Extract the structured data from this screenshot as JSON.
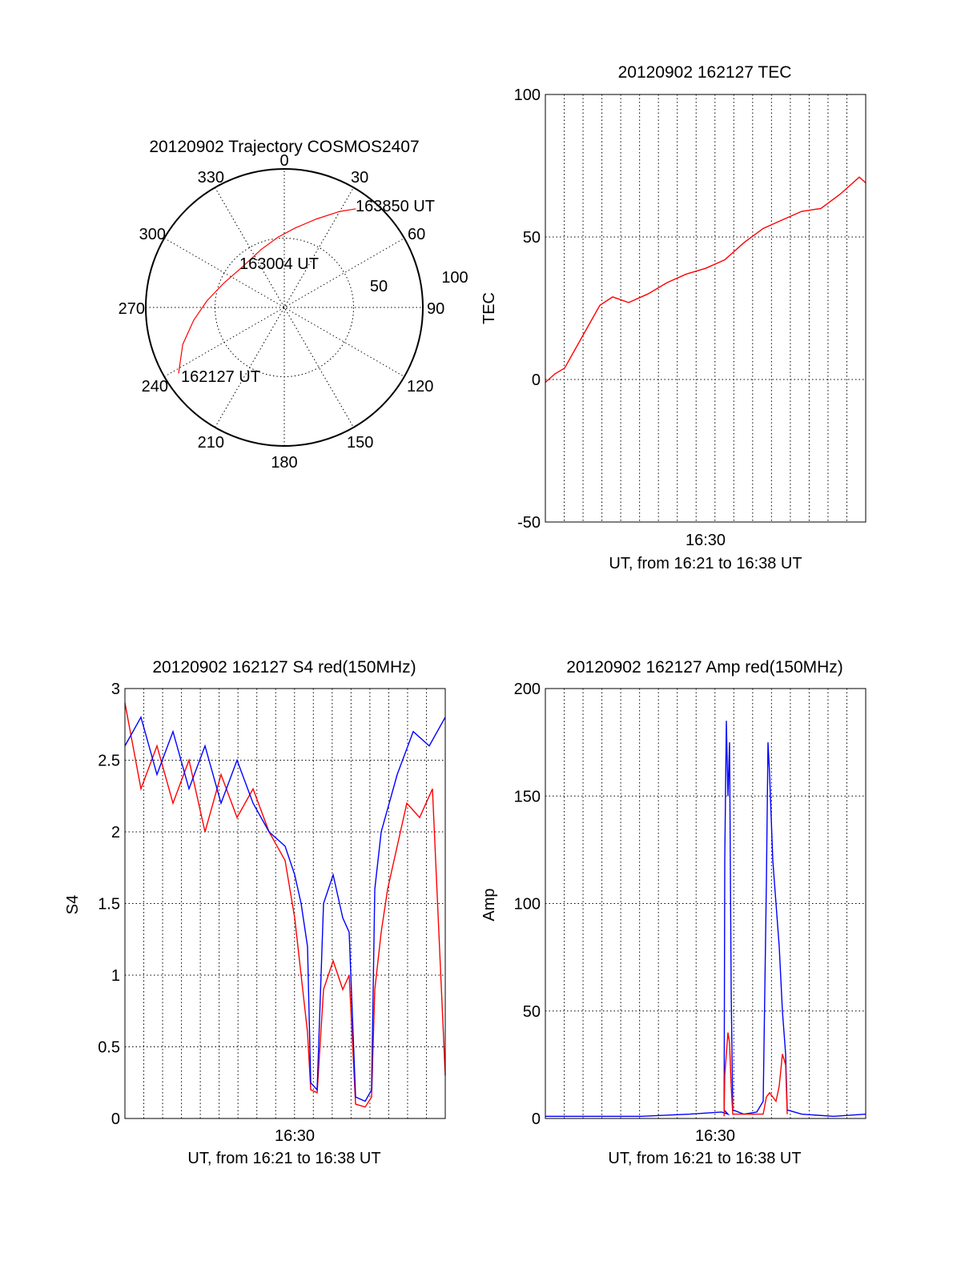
{
  "colors": {
    "red": "#ff0000",
    "blue": "#0000ff",
    "black": "#000000"
  },
  "chart_data": [
    {
      "type": "polar",
      "title": "20120902 Trajectory COSMOS2407",
      "angle_labels": [
        "0",
        "30",
        "60",
        "90",
        "120",
        "150",
        "180",
        "210",
        "240",
        "270",
        "300",
        "330"
      ],
      "radial_labels": [
        "50",
        "100"
      ],
      "radial_range": [
        0,
        100
      ],
      "annotations": [
        "163850 UT",
        "163004 UT",
        "162127 UT"
      ],
      "series": [
        {
          "color": "#ff0000",
          "points": [
            [
              238,
              90
            ],
            [
              250,
              78
            ],
            [
              262,
              66
            ],
            [
              275,
              56
            ],
            [
              292,
              47
            ],
            [
              315,
              42
            ],
            [
              338,
              45
            ],
            [
              355,
              51
            ],
            [
              8,
              58
            ],
            [
              20,
              68
            ],
            [
              30,
              80
            ],
            [
              36,
              88
            ]
          ]
        }
      ]
    },
    {
      "type": "line",
      "title": "20120902 162127 TEC",
      "ylabel": "TEC",
      "xlabel": "UT, from 16:21 to 16:38 UT",
      "xtick_labels": [
        "16:30"
      ],
      "ytick_labels": [
        "-50",
        "0",
        "50",
        "100"
      ],
      "ylim": [
        -50,
        100
      ],
      "grid": true,
      "series": [
        {
          "color": "#ff0000",
          "points": [
            [
              0.0,
              -1
            ],
            [
              0.03,
              2
            ],
            [
              0.06,
              4
            ],
            [
              0.09,
              10
            ],
            [
              0.13,
              18
            ],
            [
              0.17,
              26
            ],
            [
              0.21,
              29
            ],
            [
              0.26,
              27
            ],
            [
              0.32,
              30
            ],
            [
              0.38,
              34
            ],
            [
              0.44,
              37
            ],
            [
              0.5,
              39
            ],
            [
              0.56,
              42
            ],
            [
              0.62,
              48
            ],
            [
              0.68,
              53
            ],
            [
              0.74,
              56
            ],
            [
              0.8,
              59
            ],
            [
              0.86,
              60
            ],
            [
              0.92,
              65
            ],
            [
              0.98,
              71
            ],
            [
              1.0,
              69
            ]
          ]
        }
      ]
    },
    {
      "type": "line",
      "title": "20120902 162127 S4 red(150MHz)",
      "ylabel": "S4",
      "xlabel": "UT, from 16:21 to 16:38 UT",
      "xtick_labels": [
        "16:30"
      ],
      "ytick_labels": [
        "0",
        "0.5",
        "1",
        "1.5",
        "2",
        "2.5",
        "3"
      ],
      "ylim": [
        0,
        3
      ],
      "grid": true,
      "series": [
        {
          "color": "#ff0000",
          "points": [
            [
              0.0,
              2.9
            ],
            [
              0.05,
              2.3
            ],
            [
              0.1,
              2.6
            ],
            [
              0.15,
              2.2
            ],
            [
              0.2,
              2.5
            ],
            [
              0.25,
              2.0
            ],
            [
              0.3,
              2.4
            ],
            [
              0.35,
              2.1
            ],
            [
              0.4,
              2.3
            ],
            [
              0.45,
              2.0
            ],
            [
              0.5,
              1.8
            ],
            [
              0.53,
              1.4
            ],
            [
              0.55,
              1.0
            ],
            [
              0.57,
              0.6
            ],
            [
              0.58,
              0.2
            ],
            [
              0.6,
              0.18
            ],
            [
              0.62,
              0.9
            ],
            [
              0.65,
              1.1
            ],
            [
              0.68,
              0.9
            ],
            [
              0.7,
              1.0
            ],
            [
              0.72,
              0.1
            ],
            [
              0.75,
              0.08
            ],
            [
              0.77,
              0.15
            ],
            [
              0.78,
              0.9
            ],
            [
              0.8,
              1.3
            ],
            [
              0.82,
              1.6
            ],
            [
              0.85,
              1.9
            ],
            [
              0.88,
              2.2
            ],
            [
              0.92,
              2.1
            ],
            [
              0.96,
              2.3
            ],
            [
              1.0,
              0.3
            ]
          ]
        },
        {
          "color": "#0000ff",
          "points": [
            [
              0.0,
              2.6
            ],
            [
              0.05,
              2.8
            ],
            [
              0.1,
              2.4
            ],
            [
              0.15,
              2.7
            ],
            [
              0.2,
              2.3
            ],
            [
              0.25,
              2.6
            ],
            [
              0.3,
              2.2
            ],
            [
              0.35,
              2.5
            ],
            [
              0.4,
              2.2
            ],
            [
              0.45,
              2.0
            ],
            [
              0.5,
              1.9
            ],
            [
              0.53,
              1.7
            ],
            [
              0.55,
              1.5
            ],
            [
              0.57,
              1.2
            ],
            [
              0.58,
              0.25
            ],
            [
              0.6,
              0.2
            ],
            [
              0.62,
              1.5
            ],
            [
              0.65,
              1.7
            ],
            [
              0.68,
              1.4
            ],
            [
              0.7,
              1.3
            ],
            [
              0.72,
              0.15
            ],
            [
              0.75,
              0.12
            ],
            [
              0.77,
              0.2
            ],
            [
              0.78,
              1.6
            ],
            [
              0.8,
              2.0
            ],
            [
              0.85,
              2.4
            ],
            [
              0.9,
              2.7
            ],
            [
              0.95,
              2.6
            ],
            [
              1.0,
              2.8
            ]
          ]
        }
      ]
    },
    {
      "type": "line",
      "title": "20120902 162127 Amp red(150MHz)",
      "ylabel": "Amp",
      "xlabel": "UT, from 16:21 to 16:38 UT",
      "xtick_labels": [
        "16:30"
      ],
      "ytick_labels": [
        "0",
        "50",
        "100",
        "150",
        "200"
      ],
      "ylim": [
        0,
        200
      ],
      "grid": true,
      "series": [
        {
          "color": "#0000ff",
          "points": [
            [
              0.0,
              1
            ],
            [
              0.3,
              1
            ],
            [
              0.45,
              2
            ],
            [
              0.55,
              3
            ],
            [
              0.57,
              2
            ],
            [
              0.558,
              4
            ],
            [
              0.56,
              120
            ],
            [
              0.565,
              185
            ],
            [
              0.57,
              150
            ],
            [
              0.575,
              175
            ],
            [
              0.58,
              60
            ],
            [
              0.585,
              4
            ],
            [
              0.62,
              2
            ],
            [
              0.66,
              3
            ],
            [
              0.68,
              8
            ],
            [
              0.69,
              110
            ],
            [
              0.695,
              175
            ],
            [
              0.7,
              160
            ],
            [
              0.71,
              120
            ],
            [
              0.72,
              100
            ],
            [
              0.73,
              80
            ],
            [
              0.74,
              50
            ],
            [
              0.75,
              30
            ],
            [
              0.755,
              4
            ],
            [
              0.8,
              2
            ],
            [
              0.9,
              1
            ],
            [
              1.0,
              2
            ]
          ]
        },
        {
          "color": "#ff0000",
          "points": [
            [
              0.558,
              1
            ],
            [
              0.56,
              20
            ],
            [
              0.565,
              30
            ],
            [
              0.57,
              40
            ],
            [
              0.575,
              35
            ],
            [
              0.58,
              15
            ],
            [
              0.585,
              2
            ],
            [
              0.68,
              2
            ],
            [
              0.69,
              10
            ],
            [
              0.7,
              12
            ],
            [
              0.72,
              8
            ],
            [
              0.73,
              15
            ],
            [
              0.74,
              30
            ],
            [
              0.75,
              25
            ],
            [
              0.755,
              2
            ]
          ]
        }
      ]
    }
  ]
}
